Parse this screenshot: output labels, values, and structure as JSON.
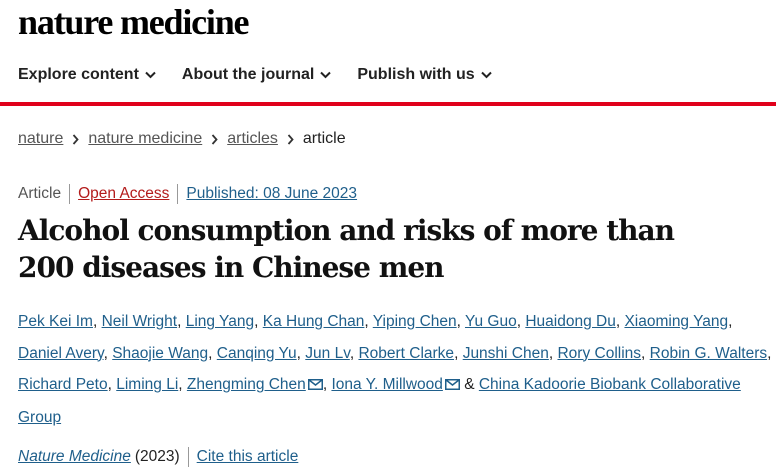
{
  "logo": "nature medicine",
  "nav": [
    {
      "label": "Explore content"
    },
    {
      "label": "About the journal"
    },
    {
      "label": "Publish with us"
    }
  ],
  "breadcrumb": {
    "items": [
      "nature",
      "nature medicine",
      "articles"
    ],
    "current": "article"
  },
  "meta": {
    "type": "Article",
    "access": "Open Access",
    "published": "Published: 08 June 2023"
  },
  "title": "Alcohol consumption and risks of more than 200 diseases in Chinese men",
  "authors": [
    "Pek Kei Im",
    "Neil Wright",
    "Ling Yang",
    "Ka Hung Chan",
    "Yiping Chen",
    "Yu Guo",
    "Huaidong Du",
    "Xiaoming Yang",
    "Daniel Avery",
    "Shaojie Wang",
    "Canqing Yu",
    "Jun Lv",
    "Robert Clarke",
    "Junshi Chen",
    "Rory Collins",
    "Robin G. Walters",
    "Richard Peto",
    "Liming Li",
    "Zhengming Chen",
    "Iona Y. Millwood"
  ],
  "ampersand": "&",
  "group": "China Kadoorie Biobank Collaborative Group",
  "citation": {
    "journal": "Nature Medicine",
    "year": "(2023)",
    "cite": "Cite this article"
  },
  "colors": {
    "accent_red": "#e0001b",
    "link_blue": "#1f5f8b",
    "open_access_red": "#b31b1b"
  }
}
